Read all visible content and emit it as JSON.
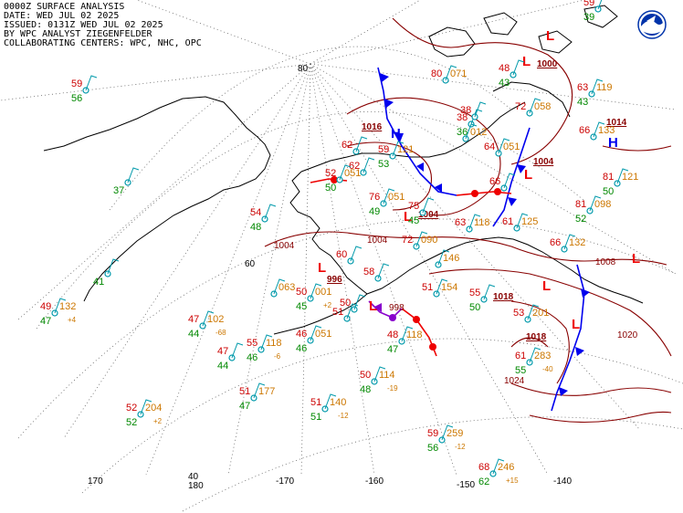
{
  "header": {
    "line1": "0000Z SURFACE ANALYSIS",
    "line2": "DATE: WED JUL 02 2025",
    "line3": "ISSUED: 0131Z WED JUL 02 2025",
    "line4": "BY WPC ANALYST ZIEGENFELDER",
    "line5": "COLLABORATING CENTERS: WPC, NHC, OPC"
  },
  "grid_labels": {
    "lat80": "80",
    "lat60": "60",
    "lat40": "40",
    "lon170": "170",
    "lon180": "180",
    "lonm170": "-170",
    "lonm160": "-160",
    "lonm150": "-150",
    "lonm140": "-140"
  },
  "centers": {
    "h1": "H",
    "h1_p": "1016",
    "h2": "H",
    "h2_p": "1014",
    "l1": "L",
    "l1_p": "1000",
    "l2": "L",
    "l2_p": "1004",
    "l3": "L",
    "l3_p": "1004",
    "l4": "L",
    "l4_p": "996",
    "l5": "L",
    "l5_p": "1018",
    "l6": "L",
    "l6_p": "1018",
    "l7": "L",
    "l8": "L",
    "l9": "L"
  },
  "isobars": {
    "i1004": "1004",
    "i1004b": "1004",
    "i1008": "1008",
    "i1020": "1020",
    "i1024": "1024",
    "i998": "998"
  },
  "stations": [
    {
      "t": "59",
      "d": "56",
      "p": "",
      "tend": ""
    },
    {
      "t": "",
      "d": "37",
      "p": "",
      "tend": ""
    },
    {
      "t": "54",
      "d": "48",
      "p": "",
      "tend": ""
    },
    {
      "t": "",
      "d": "41",
      "p": "",
      "tend": ""
    },
    {
      "t": "49",
      "d": "47",
      "p": "132",
      "tend": "+4"
    },
    {
      "t": "47",
      "d": "44",
      "p": "102",
      "tend": "-68"
    },
    {
      "t": "47",
      "d": "44",
      "p": "",
      "tend": ""
    },
    {
      "t": "55",
      "d": "46",
      "p": "118",
      "tend": "-6"
    },
    {
      "t": "52",
      "d": "52",
      "p": "204",
      "tend": "+2"
    },
    {
      "t": "51",
      "d": "47",
      "p": "177",
      "tend": ""
    },
    {
      "t": "",
      "d": "",
      "p": "063",
      "tend": ""
    },
    {
      "t": "50",
      "d": "45",
      "p": "001",
      "tend": "+2"
    },
    {
      "t": "46",
      "d": "46",
      "p": "051",
      "tend": ""
    },
    {
      "t": "51",
      "d": "51",
      "p": "140",
      "tend": "-12"
    },
    {
      "t": "50",
      "d": "48",
      "p": "114",
      "tend": "-19"
    },
    {
      "t": "48",
      "d": "47",
      "p": "118",
      "tend": ""
    },
    {
      "t": "59",
      "d": "56",
      "p": "259",
      "tend": "-12"
    },
    {
      "t": "68",
      "d": "62",
      "p": "246",
      "tend": "+15"
    },
    {
      "t": "61",
      "d": "55",
      "p": "283",
      "tend": "-40"
    },
    {
      "t": "53",
      "d": "",
      "p": "201",
      "tend": ""
    },
    {
      "t": "55",
      "d": "50",
      "p": "",
      "tend": ""
    },
    {
      "t": "51",
      "d": "",
      "p": "154",
      "tend": ""
    },
    {
      "t": "63",
      "d": "",
      "p": "118",
      "tend": ""
    },
    {
      "t": "61",
      "d": "",
      "p": "125",
      "tend": ""
    },
    {
      "t": "66",
      "d": "",
      "p": "132",
      "tend": ""
    },
    {
      "t": "81",
      "d": "52",
      "p": "098",
      "tend": ""
    },
    {
      "t": "81",
      "d": "50",
      "p": "121",
      "tend": ""
    },
    {
      "t": "66",
      "d": "",
      "p": "",
      "tend": ""
    },
    {
      "t": "63",
      "d": "43",
      "p": "119",
      "tend": ""
    },
    {
      "t": "66",
      "d": "",
      "p": "133",
      "tend": ""
    },
    {
      "t": "72",
      "d": "",
      "p": "058",
      "tend": ""
    },
    {
      "t": "59",
      "d": "53",
      "p": "121",
      "tend": ""
    },
    {
      "t": "62",
      "d": "",
      "p": "",
      "tend": ""
    },
    {
      "t": "52",
      "d": "50",
      "p": "051",
      "tend": ""
    },
    {
      "t": "76",
      "d": "49",
      "p": "051",
      "tend": ""
    },
    {
      "t": "75",
      "d": "45",
      "p": "",
      "tend": ""
    },
    {
      "t": "64",
      "d": "",
      "p": "051",
      "tend": ""
    },
    {
      "t": "48",
      "d": "43",
      "p": "",
      "tend": ""
    },
    {
      "t": "59",
      "d": "39",
      "p": "",
      "tend": ""
    },
    {
      "t": "80",
      "d": "",
      "p": "071",
      "tend": ""
    },
    {
      "t": "38",
      "d": "36",
      "p": "",
      "tend": ""
    },
    {
      "t": "38",
      "d": "",
      "p": "",
      "tend": ""
    },
    {
      "t": "",
      "d": "",
      "p": "012",
      "tend": ""
    },
    {
      "t": "72",
      "d": "",
      "p": "090",
      "tend": ""
    },
    {
      "t": "",
      "d": "",
      "p": "146",
      "tend": ""
    },
    {
      "t": "60",
      "d": "",
      "p": "",
      "tend": ""
    },
    {
      "t": "58",
      "d": "",
      "p": "",
      "tend": ""
    },
    {
      "t": "50",
      "d": "",
      "p": "",
      "tend": ""
    },
    {
      "t": "51",
      "d": "",
      "p": "",
      "tend": ""
    },
    {
      "t": "62",
      "d": "",
      "p": "",
      "tend": ""
    }
  ],
  "colors": {
    "coast": "#000000",
    "isobar": "#880000",
    "cold_front": "#0000ee",
    "warm_front": "#ee0000",
    "occluded": "#8800cc",
    "temp": "#cc0000",
    "dew": "#008800",
    "pressure": "#cc7700",
    "station": "#0099aa",
    "grid": "#555555"
  }
}
